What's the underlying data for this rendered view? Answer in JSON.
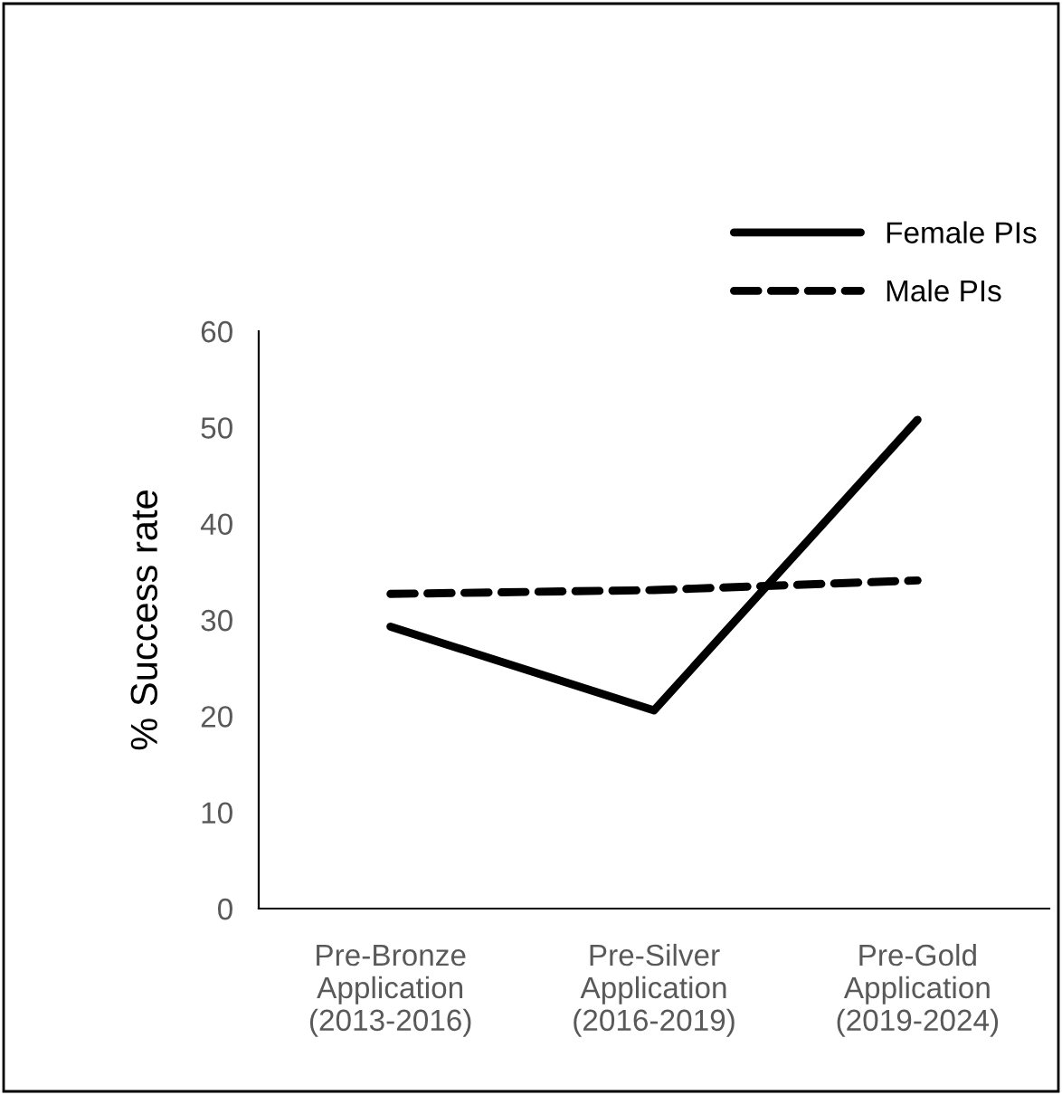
{
  "chart_data": {
    "type": "line",
    "ylabel": "% Success rate",
    "categories": [
      "Pre-Bronze\nApplication\n(2013-2016)",
      "Pre-Silver\nApplication\n(2016-2019)",
      "Pre-Gold\nApplication\n(2019-2024)"
    ],
    "series": [
      {
        "name": "Female PIs",
        "color": "#000000",
        "line_style": "solid",
        "values": [
          29.3,
          20.6,
          50.8
        ]
      },
      {
        "name": "Male PIs",
        "color": "#000000",
        "line_style": "dashed",
        "values": [
          32.7,
          33.1,
          34.1
        ]
      }
    ],
    "ylim": [
      0,
      60
    ],
    "yticks": [
      0,
      10,
      20,
      30,
      40,
      50,
      60
    ],
    "grid": false,
    "legend": "top right",
    "marker": "none"
  }
}
